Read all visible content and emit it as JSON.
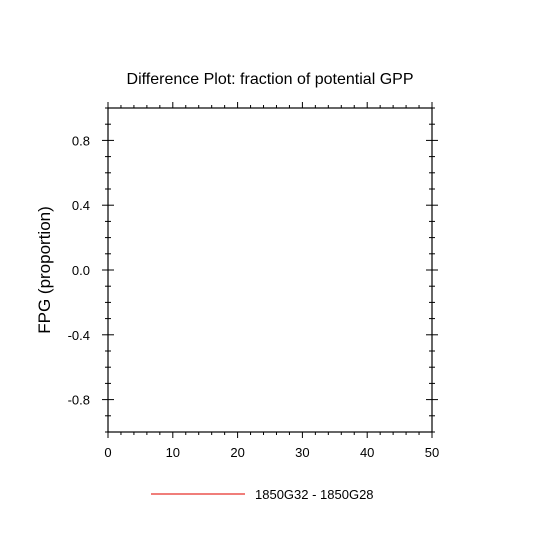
{
  "chart_data": {
    "type": "line",
    "title": "Difference Plot: fraction of potential GPP",
    "ylabel": "FPG  (proportion)",
    "xlabel": "",
    "xlim": [
      0,
      50
    ],
    "ylim": [
      -1.0,
      1.0
    ],
    "x_ticks": [
      0,
      10,
      20,
      30,
      40,
      50
    ],
    "x_tick_labels": [
      "0",
      "10",
      "20",
      "30",
      "40",
      "50"
    ],
    "y_ticks": [
      0.8,
      0.4,
      0.0,
      -0.4,
      -0.8
    ],
    "y_tick_labels": [
      "0.8",
      "0.4",
      "0.0",
      "-0.4",
      "-0.8"
    ],
    "x_minor_step": 2,
    "y_minor_step": 0.1,
    "grid": false,
    "legend_position": "bottom-center",
    "series": [
      {
        "name": "1850G32 - 1850G28",
        "color": "#e8302a",
        "x": [],
        "y": []
      }
    ]
  }
}
